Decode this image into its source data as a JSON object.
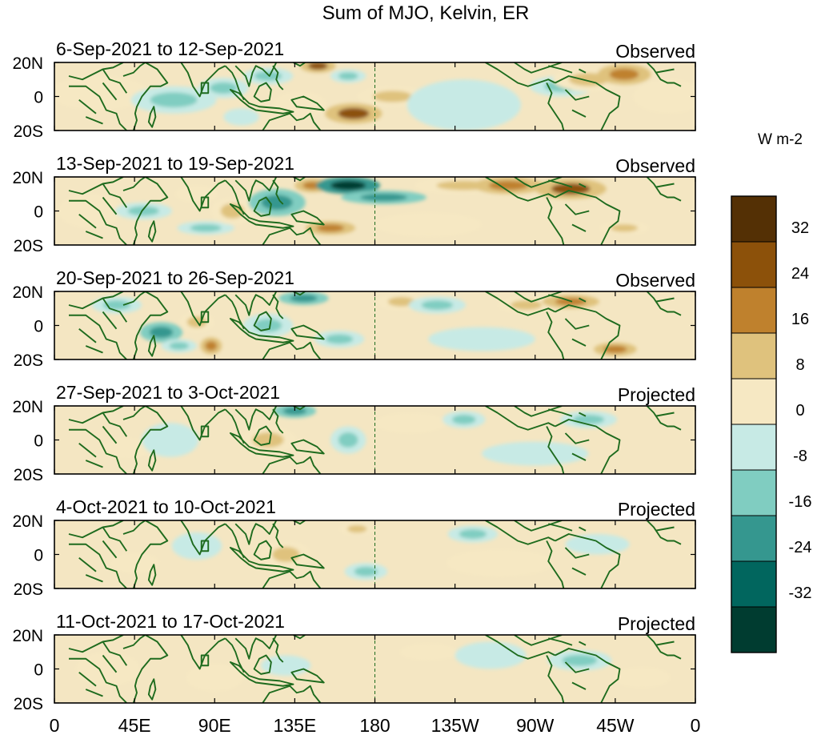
{
  "chart_data": {
    "type": "heatmap",
    "title": "Sum of MJO, Kelvin, ER",
    "colorbar": {
      "units": "W m-2",
      "tick_labels": [
        "32",
        "24",
        "16",
        "8",
        "0",
        "-8",
        "-16",
        "-24",
        "-32"
      ],
      "levels": [
        {
          "range": "> 32",
          "color": "#543005"
        },
        {
          "range": "24 to 32",
          "color": "#8c510a"
        },
        {
          "range": "16 to 24",
          "color": "#bf812d"
        },
        {
          "range": "8 to 16",
          "color": "#dfc27d"
        },
        {
          "range": "0 to 8",
          "color": "#f6e8c3"
        },
        {
          "range": "-8 to 0",
          "color": "#c7eae5"
        },
        {
          "range": "-16 to -8",
          "color": "#80cdc1"
        },
        {
          "range": "-24 to -16",
          "color": "#35978f"
        },
        {
          "range": "-32 to -24",
          "color": "#01665e"
        },
        {
          "range": "< -32",
          "color": "#003c30"
        }
      ]
    },
    "x_ticks": [
      "0",
      "45E",
      "90E",
      "135E",
      "180",
      "135W",
      "90W",
      "45W",
      "0"
    ],
    "y_ticks": [
      "20N",
      "0",
      "20S"
    ],
    "x_range": [
      0,
      360
    ],
    "y_range": [
      -20,
      20
    ],
    "coastline_color": "#1e6b1e",
    "panels": [
      {
        "period": "6-Sep-2021 to 12-Sep-2021",
        "status": "Observed",
        "blobs": [
          {
            "lon": 25,
            "lat": 2,
            "rlon": 28,
            "rlat": 10,
            "value": 6
          },
          {
            "lon": 62,
            "lat": -2,
            "rlon": 12,
            "rlat": 4,
            "value": -30
          },
          {
            "lon": 67,
            "lat": -2,
            "rlon": 24,
            "rlat": 8,
            "value": -12
          },
          {
            "lon": 95,
            "lat": 5,
            "rlon": 14,
            "rlat": 6,
            "value": -12
          },
          {
            "lon": 120,
            "lat": 12,
            "rlon": 14,
            "rlat": 5,
            "value": -14
          },
          {
            "lon": 105,
            "lat": -12,
            "rlon": 10,
            "rlat": 5,
            "value": -6
          },
          {
            "lon": 138,
            "lat": -5,
            "rlon": 15,
            "rlat": 8,
            "value": 8
          },
          {
            "lon": 148,
            "lat": 18,
            "rlon": 10,
            "rlat": 4,
            "value": 26
          },
          {
            "lon": 168,
            "lat": -10,
            "rlon": 16,
            "rlat": 6,
            "value": 30
          },
          {
            "lon": 165,
            "lat": 12,
            "rlon": 10,
            "rlat": 4,
            "value": -12
          },
          {
            "lon": 190,
            "lat": 0,
            "rlon": 20,
            "rlat": 6,
            "value": 10
          },
          {
            "lon": 230,
            "lat": -5,
            "rlon": 32,
            "rlat": 15,
            "value": -6
          },
          {
            "lon": 285,
            "lat": 6,
            "rlon": 18,
            "rlat": 6,
            "value": -8
          },
          {
            "lon": 300,
            "lat": 10,
            "rlon": 20,
            "rlat": 7,
            "value": 12
          },
          {
            "lon": 320,
            "lat": 13,
            "rlon": 15,
            "rlat": 6,
            "value": 22
          },
          {
            "lon": 345,
            "lat": 0,
            "rlon": 20,
            "rlat": 10,
            "value": 8
          }
        ]
      },
      {
        "period": "13-Sep-2021 to 19-Sep-2021",
        "status": "Observed",
        "blobs": [
          {
            "lon": 20,
            "lat": 0,
            "rlon": 18,
            "rlat": 10,
            "value": 7
          },
          {
            "lon": 50,
            "lat": 0,
            "rlon": 16,
            "rlat": 5,
            "value": -12
          },
          {
            "lon": 80,
            "lat": 10,
            "rlon": 12,
            "rlat": 5,
            "value": 8
          },
          {
            "lon": 85,
            "lat": -10,
            "rlon": 16,
            "rlat": 4,
            "value": -12
          },
          {
            "lon": 100,
            "lat": 0,
            "rlon": 12,
            "rlat": 8,
            "value": 10
          },
          {
            "lon": 125,
            "lat": 5,
            "rlon": 16,
            "rlat": 8,
            "value": -22
          },
          {
            "lon": 145,
            "lat": 15,
            "rlon": 10,
            "rlat": 4,
            "value": 24
          },
          {
            "lon": 165,
            "lat": 15,
            "rlon": 18,
            "rlat": 5,
            "value": -34
          },
          {
            "lon": 155,
            "lat": -10,
            "rlon": 14,
            "rlat": 4,
            "value": 22
          },
          {
            "lon": 185,
            "lat": 8,
            "rlon": 24,
            "rlat": 4,
            "value": -16
          },
          {
            "lon": 230,
            "lat": 15,
            "rlon": 28,
            "rlat": 5,
            "value": 10
          },
          {
            "lon": 255,
            "lat": 15,
            "rlon": 20,
            "rlat": 5,
            "value": 18
          },
          {
            "lon": 290,
            "lat": 13,
            "rlon": 20,
            "rlat": 6,
            "value": 25
          },
          {
            "lon": 320,
            "lat": -10,
            "rlon": 14,
            "rlat": 4,
            "value": 12
          },
          {
            "lon": 210,
            "lat": -8,
            "rlon": 30,
            "rlat": 7,
            "value": 5
          }
        ]
      },
      {
        "period": "20-Sep-2021 to 26-Sep-2021",
        "status": "Observed",
        "blobs": [
          {
            "lon": 35,
            "lat": 12,
            "rlon": 14,
            "rlat": 5,
            "value": -10
          },
          {
            "lon": 60,
            "lat": -4,
            "rlon": 12,
            "rlat": 6,
            "value": -22
          },
          {
            "lon": 70,
            "lat": -12,
            "rlon": 10,
            "rlat": 4,
            "value": -14
          },
          {
            "lon": 80,
            "lat": 2,
            "rlon": 10,
            "rlat": 6,
            "value": 12
          },
          {
            "lon": 88,
            "lat": -12,
            "rlon": 6,
            "rlat": 5,
            "value": 24
          },
          {
            "lon": 120,
            "lat": 0,
            "rlon": 14,
            "rlat": 7,
            "value": -14
          },
          {
            "lon": 140,
            "lat": 16,
            "rlon": 14,
            "rlat": 4,
            "value": -22
          },
          {
            "lon": 160,
            "lat": -8,
            "rlon": 14,
            "rlat": 5,
            "value": -10
          },
          {
            "lon": 195,
            "lat": 14,
            "rlon": 14,
            "rlat": 5,
            "value": 14
          },
          {
            "lon": 215,
            "lat": 12,
            "rlon": 16,
            "rlat": 5,
            "value": -14
          },
          {
            "lon": 265,
            "lat": 12,
            "rlon": 16,
            "rlat": 5,
            "value": 12
          },
          {
            "lon": 290,
            "lat": 14,
            "rlon": 16,
            "rlat": 4,
            "value": 20
          },
          {
            "lon": 315,
            "lat": -14,
            "rlon": 12,
            "rlat": 4,
            "value": 24
          },
          {
            "lon": 240,
            "lat": -8,
            "rlon": 30,
            "rlat": 7,
            "value": -5
          }
        ]
      },
      {
        "period": "27-Sep-2021 to 3-Oct-2021",
        "status": "Projected",
        "blobs": [
          {
            "lon": 40,
            "lat": -5,
            "rlon": 14,
            "rlat": 6,
            "value": 8
          },
          {
            "lon": 65,
            "lat": 0,
            "rlon": 16,
            "rlat": 10,
            "value": -6
          },
          {
            "lon": 120,
            "lat": 0,
            "rlon": 16,
            "rlat": 8,
            "value": 9
          },
          {
            "lon": 135,
            "lat": 17,
            "rlon": 12,
            "rlat": 4,
            "value": -20
          },
          {
            "lon": 165,
            "lat": 0,
            "rlon": 10,
            "rlat": 8,
            "value": -8
          },
          {
            "lon": 200,
            "lat": 10,
            "rlon": 20,
            "rlat": 6,
            "value": 6
          },
          {
            "lon": 230,
            "lat": 12,
            "rlon": 12,
            "rlat": 5,
            "value": -10
          },
          {
            "lon": 300,
            "lat": 12,
            "rlon": 16,
            "rlat": 5,
            "value": -8
          },
          {
            "lon": 270,
            "lat": -8,
            "rlon": 30,
            "rlat": 7,
            "value": -6
          }
        ]
      },
      {
        "period": "4-Oct-2021 to 10-Oct-2021",
        "status": "Projected",
        "blobs": [
          {
            "lon": 45,
            "lat": -5,
            "rlon": 14,
            "rlat": 6,
            "value": 8
          },
          {
            "lon": 80,
            "lat": 5,
            "rlon": 14,
            "rlat": 8,
            "value": -5
          },
          {
            "lon": 130,
            "lat": 0,
            "rlon": 14,
            "rlat": 8,
            "value": 10
          },
          {
            "lon": 170,
            "lat": 15,
            "rlon": 10,
            "rlat": 4,
            "value": 10
          },
          {
            "lon": 175,
            "lat": -10,
            "rlon": 12,
            "rlat": 5,
            "value": -9
          },
          {
            "lon": 235,
            "lat": 12,
            "rlon": 14,
            "rlat": 5,
            "value": -10
          },
          {
            "lon": 305,
            "lat": 6,
            "rlon": 18,
            "rlat": 6,
            "value": -6
          },
          {
            "lon": 250,
            "lat": -5,
            "rlon": 30,
            "rlat": 8,
            "value": 5
          }
        ]
      },
      {
        "period": "11-Oct-2021 to 17-Oct-2021",
        "status": "Projected",
        "blobs": [
          {
            "lon": 30,
            "lat": 0,
            "rlon": 18,
            "rlat": 10,
            "value": 6
          },
          {
            "lon": 90,
            "lat": -5,
            "rlon": 16,
            "rlat": 8,
            "value": 6
          },
          {
            "lon": 130,
            "lat": 2,
            "rlon": 14,
            "rlat": 6,
            "value": -6
          },
          {
            "lon": 210,
            "lat": 10,
            "rlon": 16,
            "rlat": 5,
            "value": 7
          },
          {
            "lon": 245,
            "lat": 8,
            "rlon": 20,
            "rlat": 8,
            "value": -7
          },
          {
            "lon": 295,
            "lat": 5,
            "rlon": 18,
            "rlat": 6,
            "value": -9
          },
          {
            "lon": 330,
            "lat": -5,
            "rlon": 16,
            "rlat": 6,
            "value": 5
          }
        ]
      }
    ]
  }
}
